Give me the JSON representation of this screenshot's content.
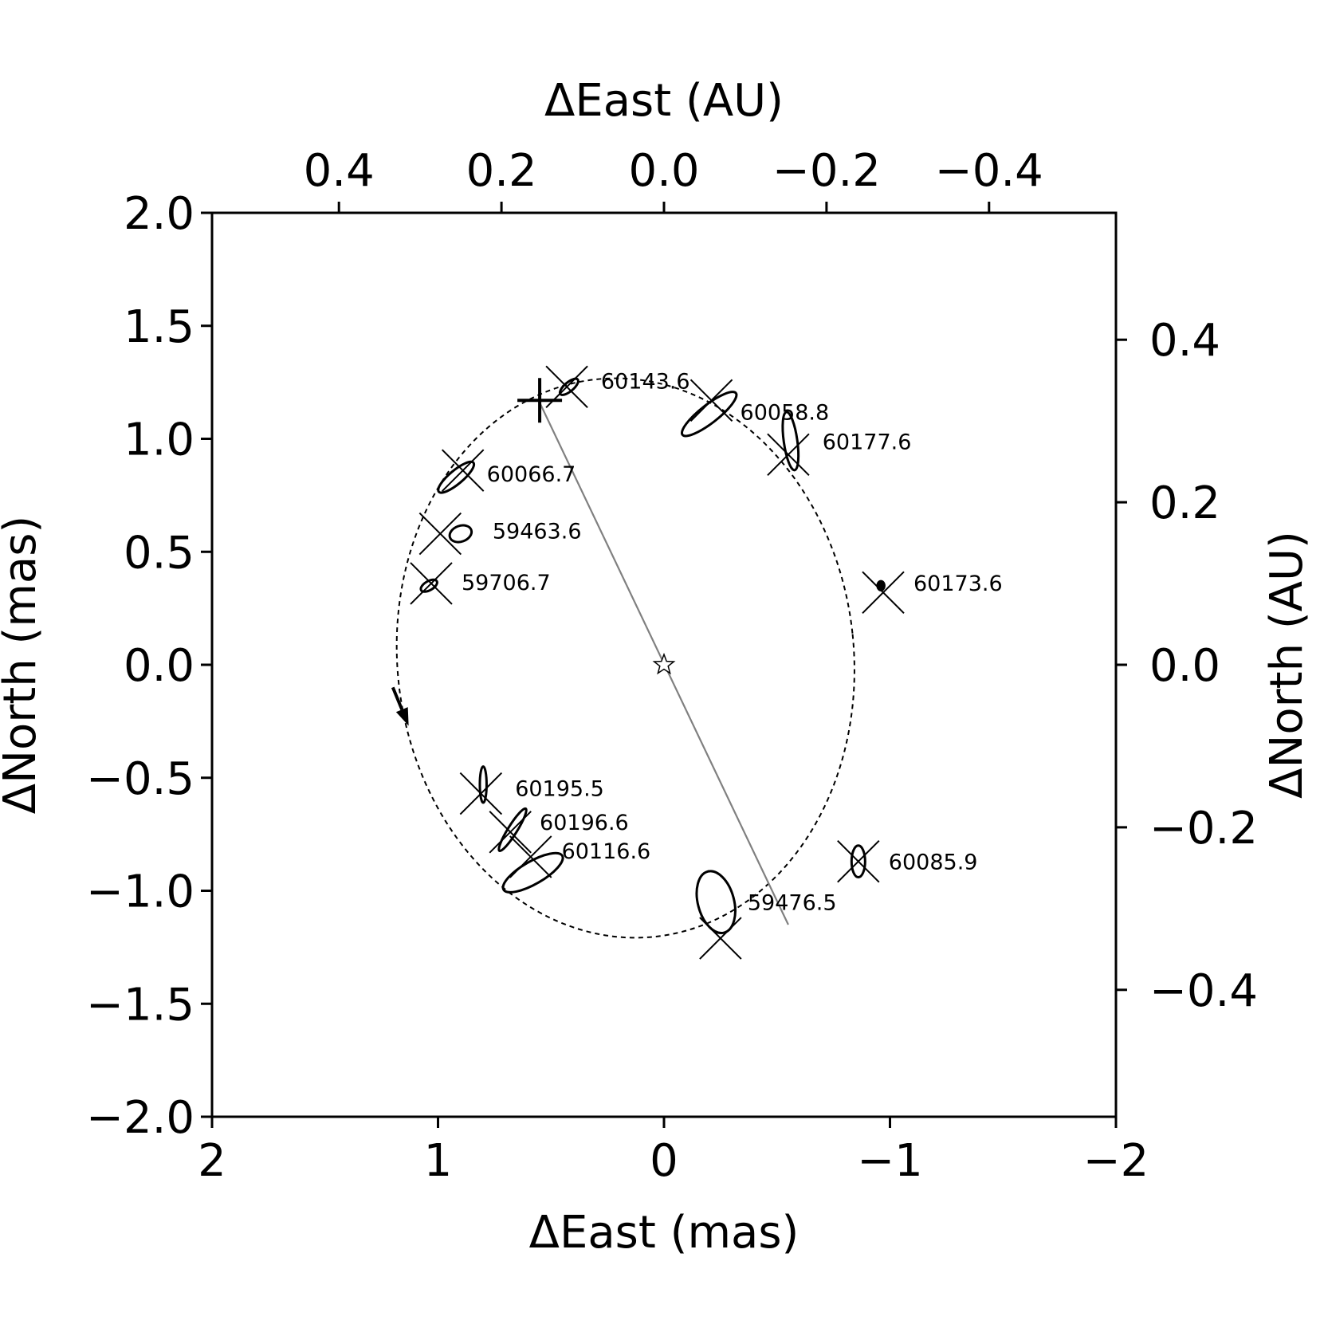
{
  "chart_data": {
    "type": "scatter",
    "xlabel_bottom": "ΔEast (mas)",
    "xlabel_top": "ΔEast (AU)",
    "ylabel_left": "ΔNorth (mas)",
    "ylabel_right": "ΔNorth (AU)",
    "xlim": [
      2,
      -2
    ],
    "ylim": [
      -2,
      2
    ],
    "x_ticks_mas": [
      2,
      1,
      0,
      -1,
      -2
    ],
    "x_tick_labels_mas": [
      "2",
      "1",
      "0",
      "−1",
      "−2"
    ],
    "y_ticks_mas": [
      -2.0,
      -1.5,
      -1.0,
      -0.5,
      0.0,
      0.5,
      1.0,
      1.5,
      2.0
    ],
    "y_tick_labels_mas": [
      "−2.0",
      "−1.5",
      "−1.0",
      "−0.5",
      "0.0",
      "0.5",
      "1.0",
      "1.5",
      "2.0"
    ],
    "x_ticks_au": [
      0.4,
      0.2,
      0.0,
      -0.2,
      -0.4
    ],
    "x_tick_labels_au": [
      "0.4",
      "0.2",
      "0.0",
      "−0.2",
      "−0.4"
    ],
    "y_ticks_au": [
      -0.4,
      -0.2,
      0.0,
      0.2,
      0.4
    ],
    "y_tick_labels_au": [
      "−0.4",
      "−0.2",
      "0.0",
      "0.2",
      "0.4"
    ],
    "grid": false,
    "orbit": {
      "style": "dashed",
      "center": [
        0.17,
        0.03
      ],
      "semi_axes": [
        1.01,
        1.24
      ],
      "rotation_deg": 6
    },
    "node_line": {
      "from": [
        0.55,
        1.16
      ],
      "to": [
        -0.55,
        -1.15
      ],
      "color": "#808080"
    },
    "periastron_marker": [
      0.55,
      1.17
    ],
    "star": [
      0.0,
      0.0
    ],
    "direction_arrow": {
      "from": [
        1.2,
        -0.1
      ],
      "to": [
        1.13,
        -0.27
      ]
    },
    "epochs": [
      {
        "label": "60143.6",
        "obs": [
          0.42,
          1.23
        ],
        "model": [
          0.43,
          1.23
        ],
        "err": [
          0.05,
          0.02,
          40
        ]
      },
      {
        "label": "60058.8",
        "obs": [
          -0.2,
          1.11
        ],
        "model": [
          -0.21,
          1.17
        ],
        "err": [
          0.15,
          0.04,
          38
        ]
      },
      {
        "label": "60177.6",
        "obs": [
          -0.56,
          0.99
        ],
        "model": [
          -0.55,
          0.93
        ],
        "err": [
          0.03,
          0.13,
          8
        ]
      },
      {
        "label": "60066.7",
        "obs": [
          0.92,
          0.83
        ],
        "model": [
          0.89,
          0.86
        ],
        "err": [
          0.1,
          0.03,
          40
        ]
      },
      {
        "label": "59463.6",
        "obs": [
          0.9,
          0.58
        ],
        "model": [
          0.99,
          0.58
        ],
        "err": [
          0.05,
          0.035,
          20
        ]
      },
      {
        "label": "59706.7",
        "obs": [
          1.04,
          0.35
        ],
        "model": [
          1.03,
          0.36
        ],
        "err": [
          0.04,
          0.02,
          30
        ]
      },
      {
        "label": "60173.6",
        "obs": [
          -0.96,
          0.35
        ],
        "model": [
          -0.97,
          0.32
        ],
        "err": [
          0.015,
          0.02,
          0
        ]
      },
      {
        "label": "60195.5",
        "obs": [
          0.8,
          -0.53
        ],
        "model": [
          0.81,
          -0.57
        ],
        "err": [
          0.015,
          0.08,
          0
        ]
      },
      {
        "label": "60196.6",
        "obs": [
          0.67,
          -0.73
        ],
        "model": [
          0.68,
          -0.74
        ],
        "err": [
          0.11,
          0.02,
          58
        ]
      },
      {
        "label": "60116.6",
        "obs": [
          0.58,
          -0.92
        ],
        "model": [
          0.59,
          -0.85
        ],
        "err": [
          0.15,
          0.05,
          30
        ]
      },
      {
        "label": "60085.9",
        "obs": [
          -0.86,
          -0.87
        ],
        "model": [
          -0.86,
          -0.87
        ],
        "err": [
          0.03,
          0.07,
          0
        ]
      },
      {
        "label": "59476.5",
        "obs": [
          -0.23,
          -1.05
        ],
        "model": [
          -0.25,
          -1.21
        ],
        "err": [
          0.08,
          0.14,
          15
        ]
      }
    ]
  }
}
